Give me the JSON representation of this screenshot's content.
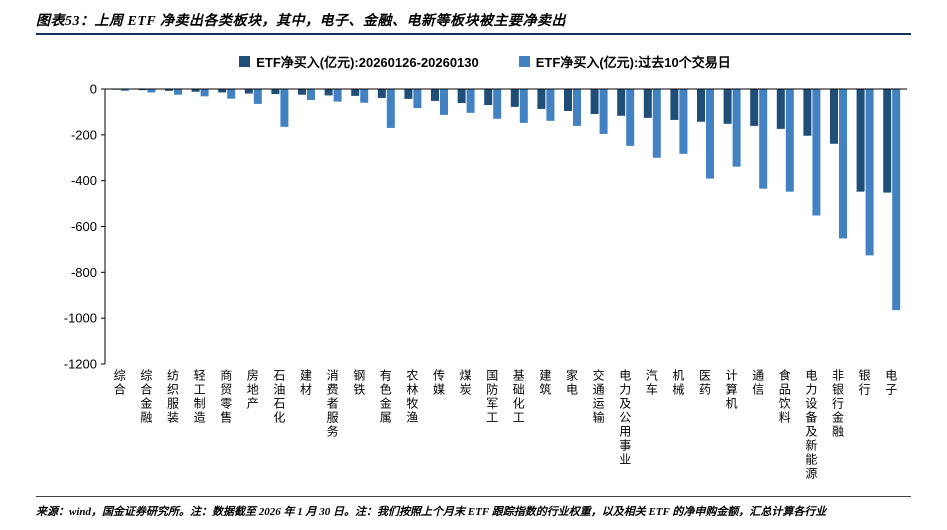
{
  "figure": {
    "title": "图表53：上周 ETF 净卖出各类板块，其中，电子、金融、电新等板块被主要净卖出",
    "source_note": "来源：wind，国金证券研究所。注：数据截至 2026 年 1 月 30 日。注：我们按照上个月末 ETF 跟踪指数的行业权重，以及相关 ETF 的净申购金额，汇总计算各行业"
  },
  "chart_data": {
    "type": "bar",
    "title": "上周 ETF 净卖出各类板块",
    "xlabel": "",
    "ylabel": "",
    "ylim": [
      0,
      -1200
    ],
    "yticks": [
      0,
      -200,
      -400,
      -600,
      -800,
      -1000,
      -1200
    ],
    "grid": false,
    "legend_position": "top-center",
    "categories": [
      "综合",
      "综合金融",
      "纺织服装",
      "轻工制造",
      "商贸零售",
      "房地产",
      "石油石化",
      "建材",
      "消费者服务",
      "钢铁",
      "有色金属",
      "农林牧渔",
      "传媒",
      "煤炭",
      "国防军工",
      "基础化工",
      "建筑",
      "家电",
      "交通运输",
      "电力及公用事业",
      "汽车",
      "机械",
      "医药",
      "计算机",
      "通信",
      "食品饮料",
      "电力设备及新能源",
      "非银行金融",
      "银行",
      "电子"
    ],
    "series": [
      {
        "name": "ETF净买入(亿元):20260126-20260130",
        "color": "#1F4E79",
        "values": [
          -3,
          -5,
          -8,
          -12,
          -15,
          -20,
          -22,
          -25,
          -28,
          -30,
          -39,
          -43,
          -52,
          -61,
          -70,
          -78,
          -87,
          -96,
          -109,
          -117,
          -126,
          -135,
          -143,
          -152,
          -161,
          -174,
          -204,
          -239,
          -448,
          -452
        ]
      },
      {
        "name": "ETF净买入(亿元):过去10个交易日",
        "color": "#4282C3",
        "values": [
          -8,
          -15,
          -25,
          -32,
          -42,
          -65,
          -165,
          -48,
          -55,
          -60,
          -170,
          -83,
          -113,
          -104,
          -130,
          -148,
          -139,
          -161,
          -196,
          -248,
          -300,
          -283,
          -391,
          -339,
          -435,
          -448,
          -552,
          -652,
          -726,
          -965
        ]
      }
    ]
  }
}
